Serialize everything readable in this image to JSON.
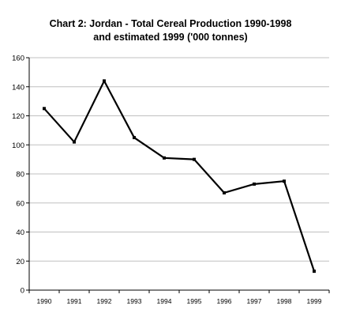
{
  "chart_data": {
    "type": "line",
    "title_line1": "Chart 2: Jordan - Total Cereal Production 1990-1998",
    "title_line2": "and estimated 1999 ('000 tonnes)",
    "xlabel": "",
    "ylabel": "",
    "x": [
      "1990",
      "1991",
      "1992",
      "1993",
      "1994",
      "1995",
      "1996",
      "1997",
      "1998",
      "1999"
    ],
    "series": [
      {
        "values": [
          125,
          102,
          144,
          105,
          91,
          90,
          67,
          73,
          75,
          13
        ]
      }
    ],
    "ylim": [
      0,
      160
    ],
    "yticks": [
      0,
      20,
      40,
      60,
      80,
      100,
      120,
      140,
      160
    ],
    "grid": true,
    "legend": "none",
    "line_color": "#000000",
    "grid_color": "#c0c0c0"
  }
}
